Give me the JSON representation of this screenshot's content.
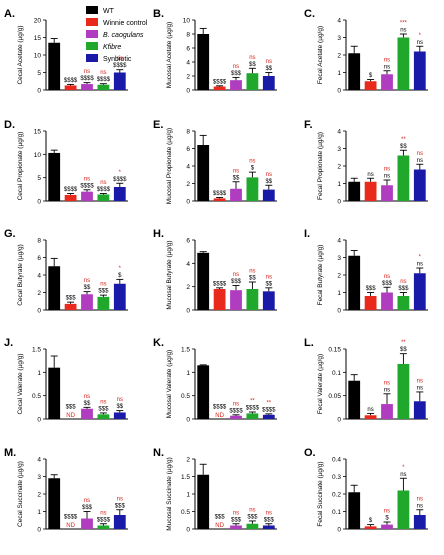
{
  "colors": {
    "WT": "#000000",
    "Winnie control": "#e8291c",
    "B. caogulans": "#b03cc0",
    "Kfibre": "#1fa82c",
    "Synbiotic": "#1a1aa8",
    "sig_black": "#000000",
    "sig_red": "#d8231b"
  },
  "legend": [
    {
      "label": "WT",
      "italic": false
    },
    {
      "label": "Winnie control",
      "italic": false
    },
    {
      "label": "B. caogulans",
      "italic": true
    },
    {
      "label": "Kfibre",
      "italic": true
    },
    {
      "label": "Synbiotic",
      "italic": false
    }
  ],
  "groups": [
    "WT",
    "Winnie control",
    "B. caogulans",
    "Kfibre",
    "Synbiotic"
  ],
  "chart_data": [
    {
      "id": "A",
      "letter": "A.",
      "type": "bar",
      "ylabel": "Cecal Acetate (µg/g)",
      "ylim": [
        0,
        20
      ],
      "yticks": [
        0,
        5,
        10,
        15,
        20
      ],
      "values": [
        13.5,
        1.3,
        1.7,
        1.5,
        5.0
      ],
      "errors": [
        1.2,
        0.3,
        0.4,
        0.3,
        0.8
      ],
      "sig": [
        [],
        [
          "$$$$"
        ],
        [
          "ns",
          "$$$$"
        ],
        [
          "ns",
          "$$$$"
        ],
        [
          "ns",
          "$$$$"
        ]
      ]
    },
    {
      "id": "B",
      "letter": "B.",
      "type": "bar",
      "ylabel": "Mucosal Acetate (µg/g)",
      "ylim": [
        0,
        10
      ],
      "yticks": [
        0,
        2,
        4,
        6,
        8,
        10
      ],
      "values": [
        8.0,
        0.5,
        1.4,
        2.4,
        2.0
      ],
      "errors": [
        0.8,
        0.1,
        0.4,
        0.7,
        0.5
      ],
      "sig": [
        [],
        [
          "$$$$"
        ],
        [
          "ns",
          "$$$"
        ],
        [
          "ns",
          "$$"
        ],
        [
          "ns",
          "$$"
        ]
      ]
    },
    {
      "id": "C",
      "letter": "C.",
      "type": "bar",
      "ylabel": "Fecal Acetate (µg/g)",
      "ylim": [
        0,
        4
      ],
      "yticks": [
        0,
        1,
        2,
        3,
        4
      ],
      "values": [
        2.1,
        0.5,
        0.9,
        3.0,
        2.2
      ],
      "errors": [
        0.4,
        0.1,
        0.2,
        0.2,
        0.3
      ],
      "sig": [
        [],
        [
          "$"
        ],
        [
          "ns",
          "ns"
        ],
        [
          "***",
          "ns"
        ],
        [
          "*",
          "ns"
        ]
      ]
    },
    {
      "id": "D",
      "letter": "D.",
      "type": "bar",
      "ylabel": "Cecal Propionate (µg/g)",
      "ylim": [
        0,
        15
      ],
      "yticks": [
        0,
        5,
        10,
        15
      ],
      "values": [
        10.3,
        1.3,
        2.0,
        1.4,
        3.0
      ],
      "errors": [
        0.6,
        0.3,
        0.4,
        0.2,
        0.8
      ],
      "sig": [
        [],
        [
          "$$$$"
        ],
        [
          "ns",
          "$$$$"
        ],
        [
          "ns",
          "$$$$"
        ],
        [
          "*",
          "$$$$"
        ]
      ]
    },
    {
      "id": "E",
      "letter": "E.",
      "type": "bar",
      "ylabel": "Mucosal Propionate (µg/g)",
      "ylim": [
        0,
        8
      ],
      "yticks": [
        0,
        2,
        4,
        6,
        8
      ],
      "values": [
        6.4,
        0.3,
        1.4,
        2.7,
        1.3
      ],
      "errors": [
        1.1,
        0.1,
        0.8,
        0.6,
        0.5
      ],
      "sig": [
        [],
        [
          "$$$$"
        ],
        [
          "ns",
          "$$"
        ],
        [
          "ns",
          "$"
        ],
        [
          "ns",
          "$$"
        ]
      ]
    },
    {
      "id": "F",
      "letter": "F.",
      "type": "bar",
      "ylabel": "Fecal Propionate (µg/g)",
      "ylim": [
        0,
        4
      ],
      "yticks": [
        0,
        1,
        2,
        3,
        4
      ],
      "values": [
        1.1,
        1.1,
        0.9,
        2.6,
        1.8
      ],
      "errors": [
        0.2,
        0.2,
        0.3,
        0.3,
        0.3
      ],
      "sig": [
        [],
        [
          "ns"
        ],
        [
          "ns",
          "ns"
        ],
        [
          "**",
          "$$"
        ],
        [
          "ns",
          "ns"
        ]
      ]
    },
    {
      "id": "G",
      "letter": "G.",
      "type": "bar",
      "ylabel": "Cecal Butyrate (µg/g)",
      "ylim": [
        0,
        8
      ],
      "yticks": [
        0,
        2,
        4,
        6,
        8
      ],
      "values": [
        5.0,
        0.7,
        1.8,
        1.5,
        3.0
      ],
      "errors": [
        0.9,
        0.2,
        0.3,
        0.2,
        0.5
      ],
      "sig": [
        [],
        [
          "$$$"
        ],
        [
          "ns",
          "$$"
        ],
        [
          "ns",
          "$$$"
        ],
        [
          "*",
          "$"
        ]
      ]
    },
    {
      "id": "H",
      "letter": "H.",
      "type": "bar",
      "ylabel": "Mucosal Butyrate (µg/g)",
      "ylim": [
        0,
        6
      ],
      "yticks": [
        0,
        2,
        4,
        6
      ],
      "values": [
        4.9,
        1.8,
        1.7,
        1.8,
        1.6
      ],
      "errors": [
        0.1,
        0.1,
        0.4,
        0.6,
        0.3
      ],
      "sig": [
        [],
        [
          "$$$$"
        ],
        [
          "ns",
          "$$$"
        ],
        [
          "ns",
          "$$"
        ],
        [
          "ns",
          "$$"
        ]
      ]
    },
    {
      "id": "I",
      "letter": "I.",
      "type": "bar",
      "ylabel": "Fecal Butyrate (µg/g)",
      "ylim": [
        0,
        4
      ],
      "yticks": [
        0,
        1,
        2,
        3,
        4
      ],
      "values": [
        3.1,
        0.8,
        1.0,
        0.8,
        2.1
      ],
      "errors": [
        0.3,
        0.2,
        0.3,
        0.2,
        0.3
      ],
      "sig": [
        [],
        [
          "$$$"
        ],
        [
          "ns",
          "$$$"
        ],
        [
          "ns",
          "$$$"
        ],
        [
          "*",
          "ns"
        ]
      ]
    },
    {
      "id": "J",
      "letter": "J.",
      "type": "bar",
      "ylabel": "Cecal Valerate (µg/g)",
      "ylim": [
        0,
        1.5
      ],
      "yticks": [
        0.0,
        0.5,
        1.0,
        1.5
      ],
      "values": [
        1.1,
        0,
        0.22,
        0.1,
        0.14
      ],
      "errors": [
        0.25,
        0,
        0.03,
        0.03,
        0.04
      ],
      "labels_at_base": [
        "",
        "ND",
        "",
        "",
        ""
      ],
      "sig": [
        [],
        [
          "$$$"
        ],
        [
          "ns",
          "$$"
        ],
        [
          "ns",
          "$$$"
        ],
        [
          "ns",
          "$$"
        ]
      ]
    },
    {
      "id": "K",
      "letter": "K.",
      "type": "bar",
      "ylabel": "Mucosal Valerate (µg/g)",
      "ylim": [
        0,
        1.5
      ],
      "yticks": [
        0.0,
        0.5,
        1.0,
        1.5
      ],
      "values": [
        1.15,
        0,
        0.07,
        0.12,
        0.09
      ],
      "errors": [
        0.01,
        0,
        0.02,
        0.03,
        0.02
      ],
      "labels_at_base": [
        "",
        "ND",
        "",
        "",
        ""
      ],
      "sig": [
        [],
        [
          "$$$$"
        ],
        [
          "ns",
          "$$$$"
        ],
        [
          "**",
          "$$$$"
        ],
        [
          "**",
          "$$$$"
        ]
      ]
    },
    {
      "id": "L",
      "letter": "L.",
      "type": "bar",
      "ylabel": "Fecal Valerate (µg/g)",
      "ylim": [
        0,
        0.15
      ],
      "yticks": [
        0.0,
        0.05,
        0.1,
        0.15
      ],
      "values": [
        0.082,
        0.008,
        0.032,
        0.118,
        0.038
      ],
      "errors": [
        0.013,
        0.004,
        0.022,
        0.022,
        0.02
      ],
      "sig": [
        [],
        [
          "ns"
        ],
        [
          "ns",
          "ns"
        ],
        [
          "**",
          "$$"
        ],
        [
          "ns",
          "ns"
        ]
      ]
    },
    {
      "id": "M",
      "letter": "M.",
      "type": "bar",
      "ylabel": "Cecal Succinate (µg/g)",
      "ylim": [
        0,
        4
      ],
      "yticks": [
        0,
        1,
        2,
        3,
        4
      ],
      "values": [
        2.9,
        0,
        0.6,
        0.2,
        0.8
      ],
      "errors": [
        0.2,
        0,
        0.4,
        0.1,
        0.3
      ],
      "labels_at_base": [
        "",
        "ND",
        "",
        "",
        ""
      ],
      "sig": [
        [],
        [
          "$$$$"
        ],
        [
          "ns",
          "$$$"
        ],
        [
          "ns",
          "$$$$"
        ],
        [
          "ns",
          "$$$"
        ]
      ]
    },
    {
      "id": "N",
      "letter": "N.",
      "type": "bar",
      "ylabel": "Mucosal Succinate (µg/g)",
      "ylim": [
        0,
        2.0
      ],
      "yticks": [
        0.0,
        0.5,
        1.0,
        1.5,
        2.0
      ],
      "values": [
        1.55,
        0,
        0.1,
        0.15,
        0.1
      ],
      "errors": [
        0.3,
        0,
        0.05,
        0.08,
        0.05
      ],
      "labels_at_base": [
        "",
        "ND",
        "",
        "",
        ""
      ],
      "sig": [
        [],
        [
          "$$$"
        ],
        [
          "ns",
          "$$$"
        ],
        [
          "ns",
          "$$$"
        ],
        [
          "ns",
          "$$$"
        ]
      ]
    },
    {
      "id": "O",
      "letter": "O.",
      "type": "bar",
      "ylabel": "Fecal Succinate (µg/g)",
      "ylim": [
        0,
        0.4
      ],
      "yticks": [
        0.0,
        0.1,
        0.2,
        0.3,
        0.4
      ],
      "values": [
        0.21,
        0.015,
        0.025,
        0.22,
        0.08
      ],
      "errors": [
        0.04,
        0.01,
        0.015,
        0.07,
        0.03
      ],
      "sig": [
        [],
        [
          "$"
        ],
        [
          "ns",
          "$"
        ],
        [
          "*",
          "ns"
        ],
        [
          "ns",
          "ns"
        ]
      ]
    }
  ]
}
